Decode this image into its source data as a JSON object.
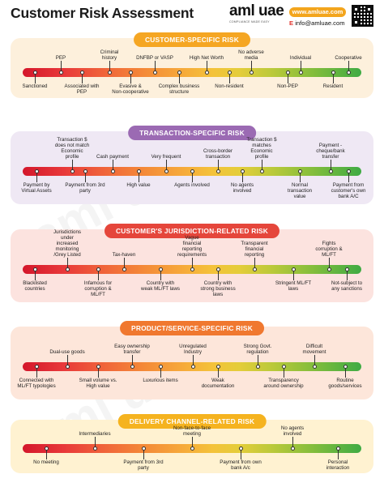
{
  "header": {
    "title": "Customer Risk Assessment",
    "logo_text": "aml uae",
    "logo_tagline": "COMPLIANCE MADE EASY",
    "website": "www.amluae.com",
    "email_prefix": "E",
    "email": "info@amluae.com"
  },
  "colors": {
    "high_risk": "#d4172b",
    "medium_risk": "#f4c23a",
    "low_risk": "#3fab44",
    "customer_section_bg": "#fdf0dc",
    "customer_pill": "#f5a623",
    "transaction_section_bg": "#efe8f4",
    "transaction_pill": "#9b6ab3",
    "jurisdiction_section_bg": "#fce3df",
    "jurisdiction_pill": "#e5463b",
    "product_section_bg": "#fde6da",
    "product_pill": "#f0782f",
    "delivery_section_bg": "#fff2d1",
    "delivery_pill": "#f5b31f"
  },
  "sections": [
    {
      "title": "CUSTOMER-SPECIFIC RISK",
      "above": [
        "PEP",
        "Criminal history",
        "DNFBP or VASP",
        "High Net Worth",
        "No adverse media",
        "Individual",
        "Cooperative"
      ],
      "below": [
        "Sanctioned",
        "Associated with PEP",
        "Evasive & Non-cooperative",
        "Complex business structure",
        "Non-resident",
        "Non-PEP",
        "Resident"
      ]
    },
    {
      "title": "TRANSACTION-SPECIFIC RISK",
      "above": [
        "Transaction $ does not match Economic profile",
        "Cash payment",
        "Very frequent",
        "Cross-border transaction",
        "Transaction $ matches Economic profile",
        "Payment - cheque/bank transfer"
      ],
      "below": [
        "Payment by Virtual Assets",
        "Payment from 3rd party",
        "High value",
        "Agents involved",
        "No agents involved",
        "Normal transaction value",
        "Payment from customer's own bank A/C"
      ]
    },
    {
      "title": "CUSTOMER'S JURISDICTION-RELATED RISK",
      "above": [
        "Jurisdictions under increased monitoring /Grey Listed",
        "Tax-haven",
        "Vague financial reporting requirements",
        "Transparent financial reporting",
        "Fights corruption & ML/FT"
      ],
      "below": [
        "Blacklisted countries",
        "Infamous for corruption & ML/FT",
        "Country with weak ML/FT laws",
        "Country with strong business laws",
        "Stringent ML/FT laws",
        "Not-subject to any sanctions"
      ]
    },
    {
      "title": "PRODUCT/SERVICE-SPECIFIC RISK",
      "above": [
        "Dual-use goods",
        "Easy ownership transfer",
        "Unregulated Industry",
        "Strong Govt. regulation",
        "Difficult movement"
      ],
      "below": [
        "Connected with ML/FT typologies",
        "Small volume vs. High value",
        "Luxurious items",
        "Weak documentation",
        "Transparency around ownership",
        "Routine goods/services"
      ]
    },
    {
      "title": "DELIVERY CHANNEL-RELATED RISK",
      "above": [
        "Intermediaries",
        "Non-face-to-face meeting",
        "No agents involved"
      ],
      "below": [
        "No meeting",
        "Payment from 3rd party",
        "Payment from own bank A/c",
        "Personal interaction"
      ]
    }
  ]
}
